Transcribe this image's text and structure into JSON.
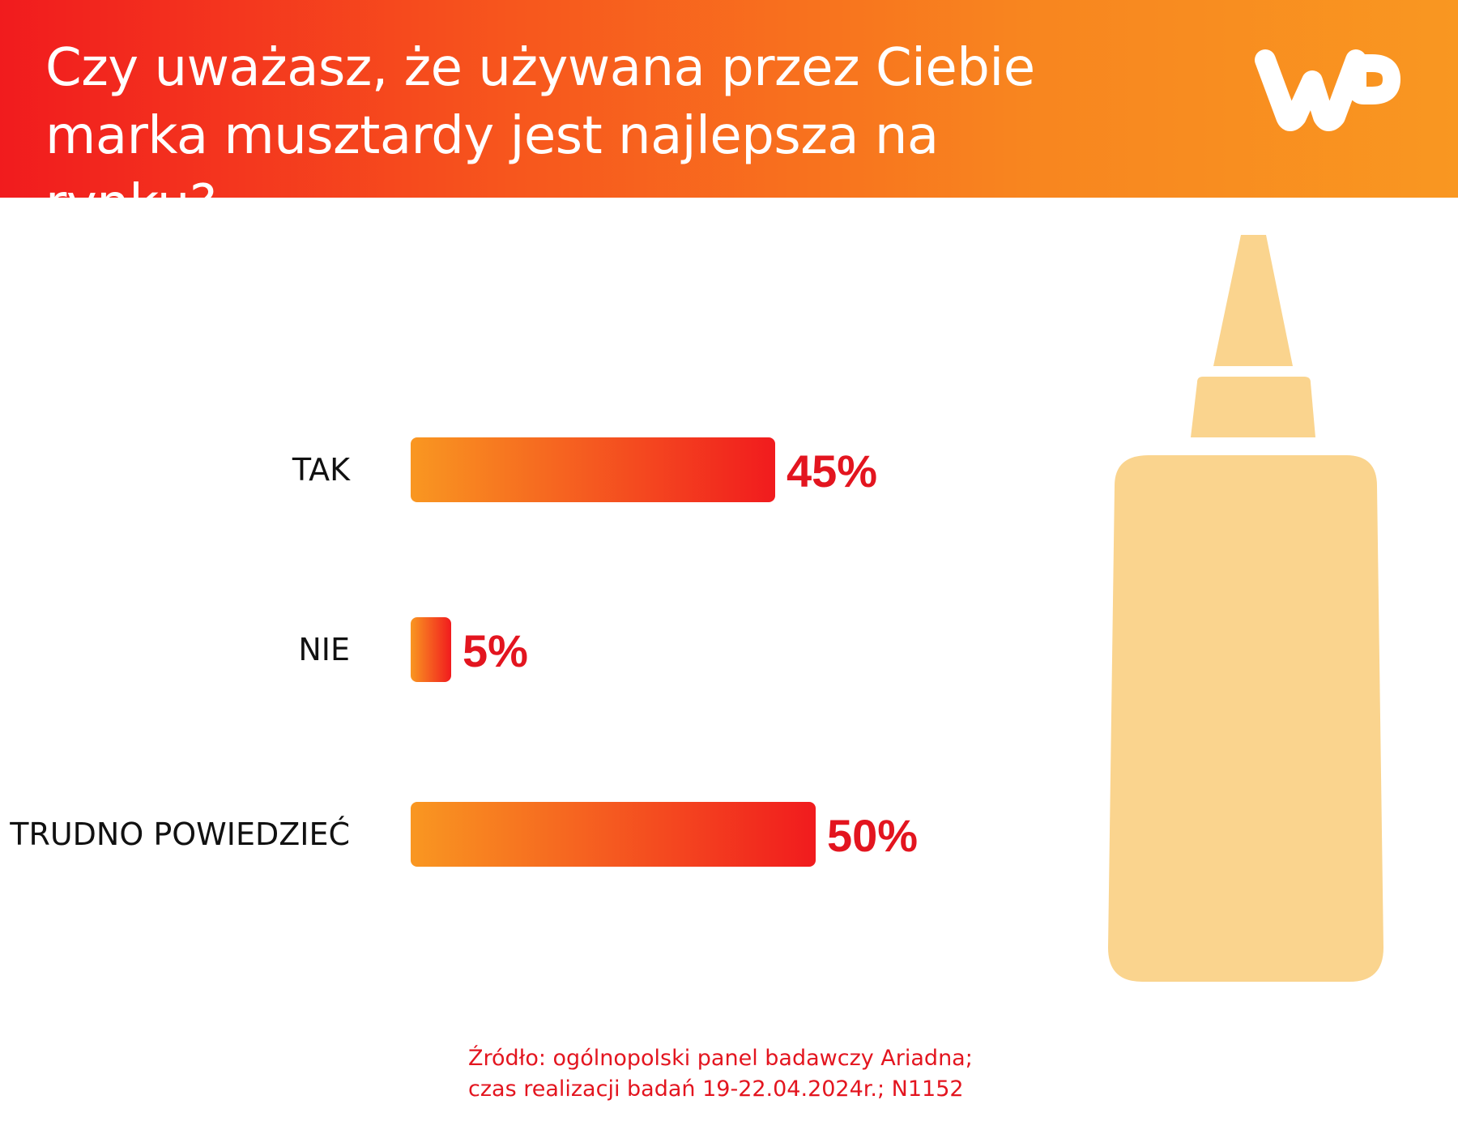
{
  "header": {
    "title": "Czy uważasz, że używana przez Ciebie marka musztardy jest najlepsza na rynku?",
    "logo_text": "WP"
  },
  "colors": {
    "header_left": "#f11b1e",
    "header_right": "#f99721",
    "bar_start": "#f99721",
    "bar_end": "#f11b1e",
    "value_text": "#e3151f",
    "bottle": "#fad48e"
  },
  "chart_data": {
    "type": "bar",
    "orientation": "horizontal",
    "categories": [
      "TAK",
      "NIE",
      "TRUDNO POWIEDZIEĆ"
    ],
    "values": [
      45,
      5,
      50
    ],
    "value_labels": [
      "45%",
      "5%",
      "50%"
    ],
    "unit": "%",
    "xlim": [
      0,
      100
    ],
    "grid": false,
    "legend": "none"
  },
  "source": {
    "line1": "Źródło: ogólnopolski panel badawczy Ariadna;",
    "line2": "czas realizacji badań 19-22.04.2024r.; N1152"
  },
  "illustration": {
    "icon": "mustard-bottle-icon"
  }
}
